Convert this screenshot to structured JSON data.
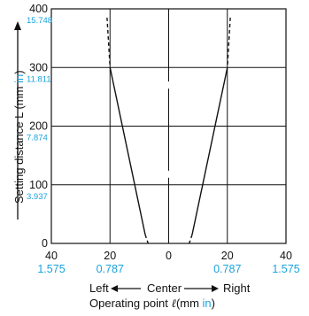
{
  "chart_data": {
    "type": "line",
    "x_ticks": [
      {
        "value": -40,
        "mm": "40",
        "in": "1.575"
      },
      {
        "value": -20,
        "mm": "20",
        "in": "0.787"
      },
      {
        "value": 0,
        "mm": "0",
        "in": ""
      },
      {
        "value": 20,
        "mm": "20",
        "in": "0.787"
      },
      {
        "value": 40,
        "mm": "40",
        "in": "1.575"
      }
    ],
    "y_ticks": [
      {
        "value": 0,
        "mm": "0",
        "in": ""
      },
      {
        "value": 100,
        "mm": "100",
        "in": "3.937"
      },
      {
        "value": 200,
        "mm": "200",
        "in": "7.874"
      },
      {
        "value": 300,
        "mm": "300",
        "in": "11.811"
      },
      {
        "value": 400,
        "mm": "400",
        "in": "15.748"
      }
    ],
    "xlim": [
      -40,
      40
    ],
    "ylim": [
      0,
      400
    ],
    "grid": true,
    "ylabel": {
      "main": "Setting distance L (mm ",
      "unit": "in",
      "close": ")"
    },
    "direction": {
      "left": "Left",
      "center": "Center",
      "right": "Right"
    },
    "xlabel": {
      "main": "Operating point ",
      "symbol": "ℓ",
      "mm": "(mm ",
      "unit": "in",
      "close": ")"
    },
    "series": [
      {
        "side": "left",
        "style": "solid",
        "points": [
          [
            -20,
            300
          ],
          [
            -8,
            15
          ]
        ]
      },
      {
        "side": "left",
        "style": "dashed",
        "points": [
          [
            -21,
            385
          ],
          [
            -20,
            300
          ]
        ]
      },
      {
        "side": "left",
        "style": "dashed",
        "points": [
          [
            -8,
            15
          ],
          [
            -7,
            0
          ]
        ]
      },
      {
        "side": "right",
        "style": "solid",
        "points": [
          [
            20,
            300
          ],
          [
            8,
            15
          ]
        ]
      },
      {
        "side": "right",
        "style": "dashed",
        "points": [
          [
            21,
            385
          ],
          [
            20,
            300
          ]
        ]
      },
      {
        "side": "right",
        "style": "dashed",
        "points": [
          [
            8,
            15
          ],
          [
            7,
            0
          ]
        ]
      }
    ],
    "colors": {
      "line": "#111111",
      "grid": "#111111",
      "inch": "#1aa3dd"
    }
  }
}
